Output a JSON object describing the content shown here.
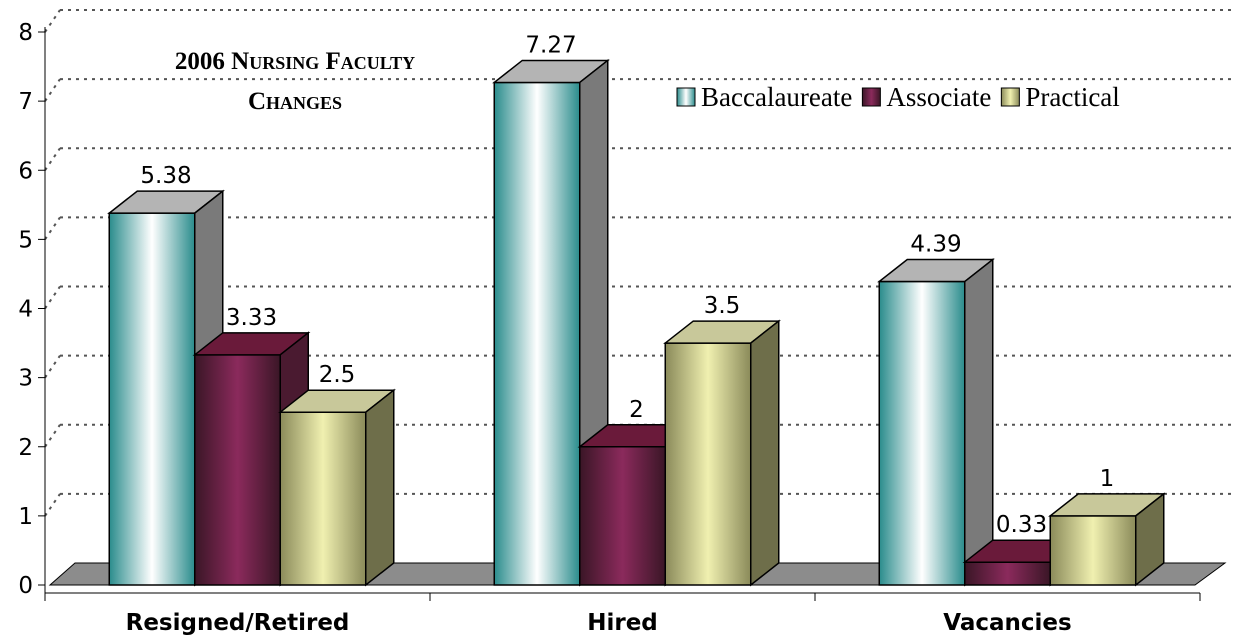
{
  "chart_data": {
    "type": "bar3d",
    "title": "2006 Nursing Faculty Changes",
    "categories": [
      "Resigned/Retired",
      "Hired",
      "Vacancies"
    ],
    "series": [
      {
        "name": "Baccalaureate",
        "color": "#2a8c8c",
        "values": [
          5.38,
          7.27,
          4.39
        ]
      },
      {
        "name": "Associate",
        "color": "#8b2a5c",
        "values": [
          3.33,
          2,
          0.33
        ]
      },
      {
        "name": "Practical",
        "color": "#f0f0b0",
        "values": [
          2.5,
          3.5,
          1
        ]
      }
    ],
    "ylim": [
      0,
      8
    ],
    "yticks": [
      0,
      1,
      2,
      3,
      4,
      5,
      6,
      7,
      8
    ],
    "grid": true,
    "legend": "top-right"
  }
}
